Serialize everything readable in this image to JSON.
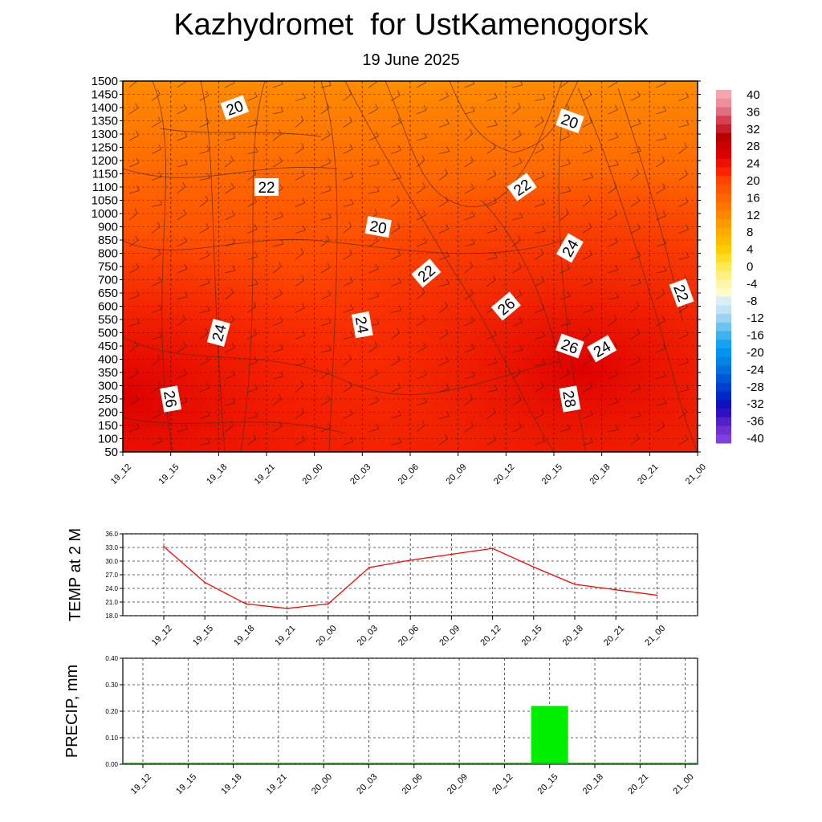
{
  "header": {
    "title": "Kazhydromet  for UstKamenogorsk",
    "subtitle": "19 June 2025"
  },
  "chart_data": [
    {
      "type": "heatmap",
      "name": "vertical-cross-section",
      "x_ticks": [
        "19_12",
        "19_15",
        "19_18",
        "19_21",
        "20_00",
        "20_03",
        "20_06",
        "20_09",
        "20_12",
        "20_15",
        "20_18",
        "20_21",
        "21_00"
      ],
      "y_ticks": [
        "50",
        "100",
        "150",
        "200",
        "250",
        "300",
        "350",
        "400",
        "450",
        "500",
        "550",
        "600",
        "650",
        "700",
        "750",
        "800",
        "850",
        "900",
        "1000",
        "1050",
        "1100",
        "1150",
        "1200",
        "1250",
        "1300",
        "1350",
        "1400",
        "1450",
        "1500"
      ],
      "contour_labels": [
        {
          "text": "20",
          "x": "19_19",
          "y": 1400
        },
        {
          "text": "22",
          "x": "19_21",
          "y": 1100
        },
        {
          "text": "20",
          "x": "20_04",
          "y": 900
        },
        {
          "text": "22",
          "x": "20_07",
          "y": 725
        },
        {
          "text": "22",
          "x": "20_13",
          "y": 1100
        },
        {
          "text": "20",
          "x": "20_16",
          "y": 1350
        },
        {
          "text": "24",
          "x": "20_16",
          "y": 820
        },
        {
          "text": "26",
          "x": "20_12",
          "y": 600
        },
        {
          "text": "22",
          "x": "20_23",
          "y": 650
        },
        {
          "text": "24",
          "x": "19_18",
          "y": 500
        },
        {
          "text": "24",
          "x": "20_03",
          "y": 530
        },
        {
          "text": "26",
          "x": "20_16",
          "y": 450
        },
        {
          "text": "24",
          "x": "20_18",
          "y": 440
        },
        {
          "text": "26",
          "x": "19_15",
          "y": 250
        },
        {
          "text": "28",
          "x": "20_16",
          "y": 250
        }
      ],
      "colorbar_ticks": [
        "40",
        "36",
        "32",
        "28",
        "24",
        "20",
        "16",
        "12",
        "8",
        "4",
        "0",
        "-4",
        "-8",
        "-12",
        "-16",
        "-20",
        "-24",
        "-28",
        "-32",
        "-36",
        "-40"
      ],
      "colorbar_colors": [
        "#f4a6b0",
        "#ee8f9b",
        "#e07080",
        "#d84050",
        "#c81f2a",
        "#b80000",
        "#cc0000",
        "#dd0000",
        "#ee1100",
        "#ff2200",
        "#ff4400",
        "#ff5500",
        "#ff6600",
        "#ff7700",
        "#ff8800",
        "#ff9900",
        "#ffaa00",
        "#ffbb00",
        "#ffcc00",
        "#ffdd22",
        "#ffe955",
        "#fff080",
        "#fff5a8",
        "#fffacc",
        "#d9eef7",
        "#c2e3f4",
        "#9dd3f0",
        "#6ec2ee",
        "#3fb2ee",
        "#15a2f0",
        "#0095f0",
        "#0085e6",
        "#0070e0",
        "#0058d8",
        "#0040d0",
        "#0028c8",
        "#1010c0",
        "#3010c0",
        "#5020c8",
        "#7030d0",
        "#8040e0"
      ]
    },
    {
      "type": "line",
      "name": "temp-2m",
      "ylabel": "TEMP at 2 M",
      "x": [
        "19_12",
        "19_15",
        "19_18",
        "19_21",
        "20_00",
        "20_03",
        "20_06",
        "20_09",
        "20_12",
        "20_15",
        "20_18",
        "20_21",
        "21_00"
      ],
      "y_ticks": [
        "36.0",
        "33.0",
        "30.0",
        "27.0",
        "24.0",
        "21.0",
        "18.0"
      ],
      "ylim": [
        18,
        36
      ],
      "series": [
        {
          "color": "#ff0000",
          "values": [
            33.2,
            25.3,
            20.6,
            19.6,
            20.6,
            28.6,
            30.2,
            31.5,
            32.8,
            28.7,
            24.9,
            23.7,
            22.5
          ]
        }
      ]
    },
    {
      "type": "bar",
      "name": "precip",
      "ylabel": "PRECIP, mm",
      "categories": [
        "19_12",
        "19_15",
        "19_18",
        "19_21",
        "20_00",
        "20_03",
        "20_06",
        "20_09",
        "20_12",
        "20_15",
        "20_18",
        "20_21",
        "21_00"
      ],
      "y_ticks": [
        "0.40",
        "0.30",
        "0.20",
        "0.10",
        "0.00"
      ],
      "ylim": [
        0,
        0.4
      ],
      "values": [
        0,
        0,
        0,
        0,
        0,
        0,
        0,
        0,
        0,
        0.22,
        0,
        0,
        0
      ],
      "bar_color": "#00ee00"
    }
  ]
}
